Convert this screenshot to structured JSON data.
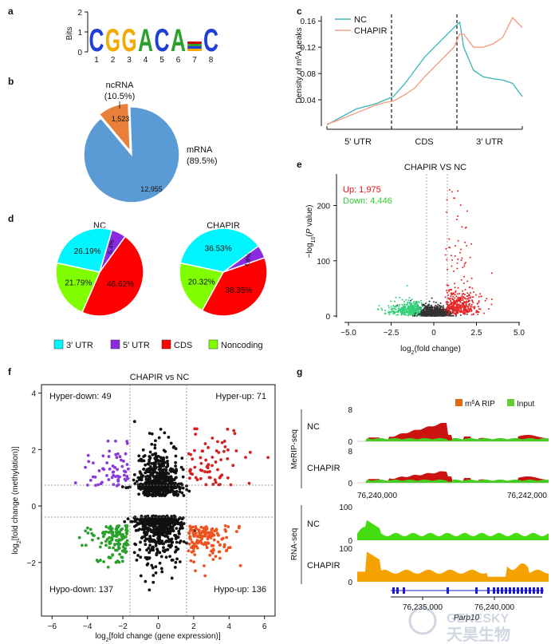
{
  "panels": {
    "a": "a",
    "b": "b",
    "c": "c",
    "d": "d",
    "e": "e",
    "f": "f",
    "g": "g"
  },
  "motif": {
    "ylabel": "Bits",
    "yticks": [
      "0",
      "1",
      "2"
    ],
    "positions": [
      "1",
      "2",
      "3",
      "4",
      "5",
      "6",
      "7",
      "8"
    ],
    "letters": [
      {
        "l": "C",
        "color": "#1f3fd6"
      },
      {
        "l": "G",
        "color": "#f2a900"
      },
      {
        "l": "G",
        "color": "#f2a900"
      },
      {
        "l": "A",
        "color": "#2ca02c"
      },
      {
        "l": "C",
        "color": "#1f3fd6"
      },
      {
        "l": "A",
        "color": "#2ca02c"
      },
      {
        "l": "",
        "color": "#cc0000"
      },
      {
        "l": "C",
        "color": "#1f3fd6"
      }
    ]
  },
  "chart_data": [
    {
      "panel": "b",
      "type": "pie",
      "labels": [
        "ncRNA",
        "mRNA"
      ],
      "label_pct": [
        "(10.5%)",
        "(89.5%)"
      ],
      "values": [
        1523,
        12955
      ],
      "value_labels": [
        "1,523",
        "12,955"
      ],
      "colors": [
        "#e8803a",
        "#5b9bd5"
      ]
    },
    {
      "panel": "c",
      "type": "line",
      "ylabel": "Density of m6A peaks",
      "yticks": [
        "0.04",
        "0.08",
        "0.12",
        "0.16"
      ],
      "ylim": [
        0,
        0.17
      ],
      "regions": [
        "5′ UTR",
        "CDS",
        "3′ UTR"
      ],
      "series": [
        {
          "name": "NC",
          "color": "#45b8b8",
          "x": [
            0,
            0.05,
            0.1,
            0.15,
            0.2,
            0.25,
            0.3,
            0.34,
            0.4,
            0.45,
            0.5,
            0.55,
            0.6,
            0.65,
            0.68,
            0.7,
            0.75,
            0.8,
            0.85,
            0.9,
            0.95,
            1
          ],
          "y": [
            0.002,
            0.01,
            0.018,
            0.026,
            0.03,
            0.034,
            0.04,
            0.045,
            0.065,
            0.085,
            0.105,
            0.12,
            0.135,
            0.15,
            0.158,
            0.12,
            0.085,
            0.075,
            0.072,
            0.07,
            0.065,
            0.045
          ]
        },
        {
          "name": "CHAPIR",
          "color": "#f2a08a",
          "x": [
            0,
            0.05,
            0.1,
            0.15,
            0.2,
            0.25,
            0.3,
            0.34,
            0.4,
            0.45,
            0.5,
            0.55,
            0.6,
            0.65,
            0.68,
            0.7,
            0.75,
            0.8,
            0.85,
            0.9,
            0.95,
            1
          ],
          "y": [
            0.003,
            0.008,
            0.014,
            0.02,
            0.026,
            0.032,
            0.036,
            0.038,
            0.048,
            0.058,
            0.075,
            0.09,
            0.105,
            0.12,
            0.14,
            0.14,
            0.12,
            0.12,
            0.125,
            0.135,
            0.165,
            0.15
          ]
        }
      ]
    },
    {
      "panel": "d",
      "type": "pie",
      "groups": [
        {
          "title": "NC",
          "values": [
            26.19,
            5.4,
            46.62,
            21.79
          ],
          "labels": [
            "26.19%",
            "5.4%",
            "46.62%",
            "21.79%"
          ]
        },
        {
          "title": "CHAPIR",
          "values": [
            36.53,
            4.8,
            38.35,
            20.32
          ],
          "labels": [
            "36.53%",
            "4.8%",
            "38.35%",
            "20.32%"
          ]
        }
      ],
      "legend": [
        "3′ UTR",
        "5′ UTR",
        "CDS",
        "Noncoding"
      ],
      "colors": [
        "#00f5ff",
        "#8a2be2",
        "#ff0000",
        "#80ff00"
      ]
    },
    {
      "panel": "e",
      "type": "scatter",
      "title": "CHAPIR VS NC",
      "up_label": "Up: 1,975",
      "down_label": "Down: 4,446",
      "xlabel": "log2(fold change)",
      "ylabel": "-log10(P value)",
      "xticks": [
        "−5.0",
        "−2.5",
        "0",
        "2.5",
        "5.0"
      ],
      "yticks": [
        "0",
        "100",
        "200"
      ],
      "xlim": [
        -5.5,
        5.2
      ],
      "ylim": [
        -10,
        265
      ]
    },
    {
      "panel": "f",
      "type": "scatter",
      "title": "CHAPIR vs NC",
      "xlabel": "log2[fold change (gene expression)]",
      "ylabel": "log2[fold change (methylation)]",
      "xticks": [
        "−6",
        "−4",
        "−2",
        "0",
        "2",
        "4",
        "6"
      ],
      "yticks": [
        "−2",
        "0",
        "2",
        "4"
      ],
      "xlim": [
        -6.6,
        6.6
      ],
      "ylim": [
        -3.9,
        4.3
      ],
      "quadrants": [
        "Hyper-down: 49",
        "Hyper-up: 71",
        "Hypo-down: 137",
        "Hypo-up: 136"
      ],
      "colors": {
        "hyper_down": "#8a3ad8",
        "hyper_up": "#d42020",
        "hypo_down": "#2ca02c",
        "hypo_up": "#f0521e",
        "other": "#111111"
      }
    },
    {
      "panel": "g",
      "type": "area",
      "legend": [
        "m6A RIP",
        "Input"
      ],
      "legend_colors": [
        "#e06a10",
        "#66cc33"
      ],
      "groups": [
        "MeRIP-seq",
        "RNA-seq"
      ],
      "tracks": [
        {
          "label": "NC",
          "ymax": "8",
          "group": 0
        },
        {
          "label": "CHAPIR",
          "ymax": "8",
          "group": 0
        },
        {
          "label": "NC",
          "ymax": "100",
          "group": 1
        },
        {
          "label": "CHAPIR",
          "ymax": "100",
          "group": 1
        }
      ],
      "coords_top": [
        "76,240,000",
        "76,242,000"
      ],
      "coords_bottom": [
        "76,235,000",
        "76,240,000"
      ],
      "gene": "Parp10"
    }
  ],
  "watermark": {
    "en": "GENESKY",
    "cn": "天昊生物"
  }
}
